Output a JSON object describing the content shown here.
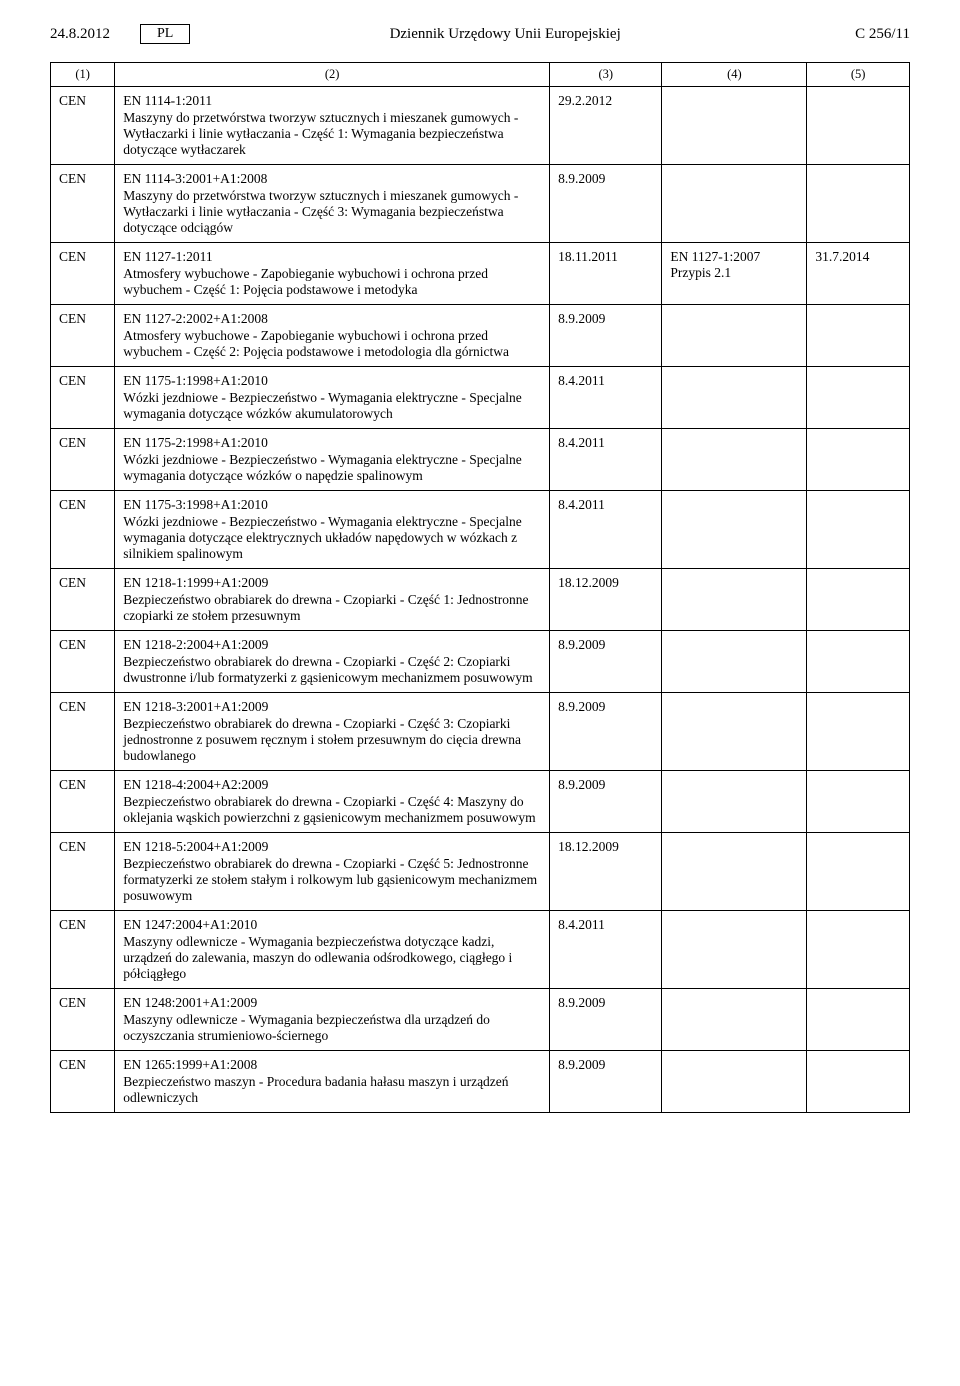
{
  "header": {
    "date": "24.8.2012",
    "lang": "PL",
    "title": "Dziennik Urzędowy Unii Europejskiej",
    "page": "C 256/11"
  },
  "columns": [
    "(1)",
    "(2)",
    "(3)",
    "(4)",
    "(5)"
  ],
  "rows": [
    {
      "org": "CEN",
      "ref": "EN 1114-1:2011",
      "desc": "Maszyny do przetwórstwa tworzyw sztucznych i mieszanek gumowych - Wytłaczarki i linie wytłaczania - Część 1: Wymagania bezpieczeństwa dotyczące wytłaczarek",
      "c3": "29.2.2012",
      "c4": "",
      "c5": ""
    },
    {
      "org": "CEN",
      "ref": "EN 1114-3:2001+A1:2008",
      "desc": "Maszyny do przetwórstwa tworzyw sztucznych i mieszanek gumowych - Wytłaczarki i linie wytłaczania - Część 3: Wymagania bezpieczeństwa dotyczące odciągów",
      "c3": "8.9.2009",
      "c4": "",
      "c5": ""
    },
    {
      "org": "CEN",
      "ref": "EN 1127-1:2011",
      "desc": "Atmosfery wybuchowe - Zapobieganie wybuchowi i ochrona przed wybuchem - Część 1: Pojęcia podstawowe i metodyka",
      "c3": "18.11.2011",
      "c4": "EN 1127-1:2007\nPrzypis 2.1",
      "c5": "31.7.2014"
    },
    {
      "org": "CEN",
      "ref": "EN 1127-2:2002+A1:2008",
      "desc": "Atmosfery wybuchowe - Zapobieganie wybuchowi i ochrona przed wybuchem - Część 2: Pojęcia podstawowe i metodologia dla górnictwa",
      "c3": "8.9.2009",
      "c4": "",
      "c5": ""
    },
    {
      "org": "CEN",
      "ref": "EN 1175-1:1998+A1:2010",
      "desc": "Wózki jezdniowe - Bezpieczeństwo - Wymagania elektryczne - Specjalne wymagania dotyczące wózków akumulatorowych",
      "c3": "8.4.2011",
      "c4": "",
      "c5": ""
    },
    {
      "org": "CEN",
      "ref": "EN 1175-2:1998+A1:2010",
      "desc": "Wózki jezdniowe - Bezpieczeństwo - Wymagania elektryczne - Specjalne wymagania dotyczące wózków o napędzie spalinowym",
      "c3": "8.4.2011",
      "c4": "",
      "c5": ""
    },
    {
      "org": "CEN",
      "ref": "EN 1175-3:1998+A1:2010",
      "desc": "Wózki jezdniowe - Bezpieczeństwo - Wymagania elektryczne - Specjalne wymagania dotyczące elektrycznych układów napędowych w wózkach z silnikiem spalinowym",
      "c3": "8.4.2011",
      "c4": "",
      "c5": ""
    },
    {
      "org": "CEN",
      "ref": "EN 1218-1:1999+A1:2009",
      "desc": "Bezpieczeństwo obrabiarek do drewna - Czopiarki - Część 1: Jednostronne czopiarki ze stołem przesuwnym",
      "c3": "18.12.2009",
      "c4": "",
      "c5": ""
    },
    {
      "org": "CEN",
      "ref": "EN 1218-2:2004+A1:2009",
      "desc": "Bezpieczeństwo obrabiarek do drewna - Czopiarki - Część 2: Czopiarki dwustronne i/lub formatyzerki z gąsienicowym mechanizmem posuwowym",
      "c3": "8.9.2009",
      "c4": "",
      "c5": ""
    },
    {
      "org": "CEN",
      "ref": "EN 1218-3:2001+A1:2009",
      "desc": "Bezpieczeństwo obrabiarek do drewna - Czopiarki - Część 3: Czopiarki jednostronne z posuwem ręcznym i stołem przesuwnym do cięcia drewna budowlanego",
      "c3": "8.9.2009",
      "c4": "",
      "c5": ""
    },
    {
      "org": "CEN",
      "ref": "EN 1218-4:2004+A2:2009",
      "desc": "Bezpieczeństwo obrabiarek do drewna - Czopiarki - Część 4: Maszyny do oklejania wąskich powierzchni z gąsienicowym mechanizmem posuwowym",
      "c3": "8.9.2009",
      "c4": "",
      "c5": ""
    },
    {
      "org": "CEN",
      "ref": "EN 1218-5:2004+A1:2009",
      "desc": "Bezpieczeństwo obrabiarek do drewna - Czopiarki - Część 5: Jednostronne formatyzerki ze stołem stałym i rolkowym lub gąsienicowym mechanizmem posuwowym",
      "c3": "18.12.2009",
      "c4": "",
      "c5": ""
    },
    {
      "org": "CEN",
      "ref": "EN 1247:2004+A1:2010",
      "desc": "Maszyny odlewnicze - Wymagania bezpieczeństwa dotyczące kadzi, urządzeń do zalewania, maszyn do odlewania odśrodkowego, ciągłego i półciągłego",
      "c3": "8.4.2011",
      "c4": "",
      "c5": ""
    },
    {
      "org": "CEN",
      "ref": "EN 1248:2001+A1:2009",
      "desc": "Maszyny odlewnicze - Wymagania bezpieczeństwa dla urządzeń do oczyszczania strumieniowo-ściernego",
      "c3": "8.9.2009",
      "c4": "",
      "c5": ""
    },
    {
      "org": "CEN",
      "ref": "EN 1265:1999+A1:2008",
      "desc": "Bezpieczeństwo maszyn - Procedura badania hałasu maszyn i urządzeń odlewniczych",
      "c3": "8.9.2009",
      "c4": "",
      "c5": ""
    }
  ]
}
